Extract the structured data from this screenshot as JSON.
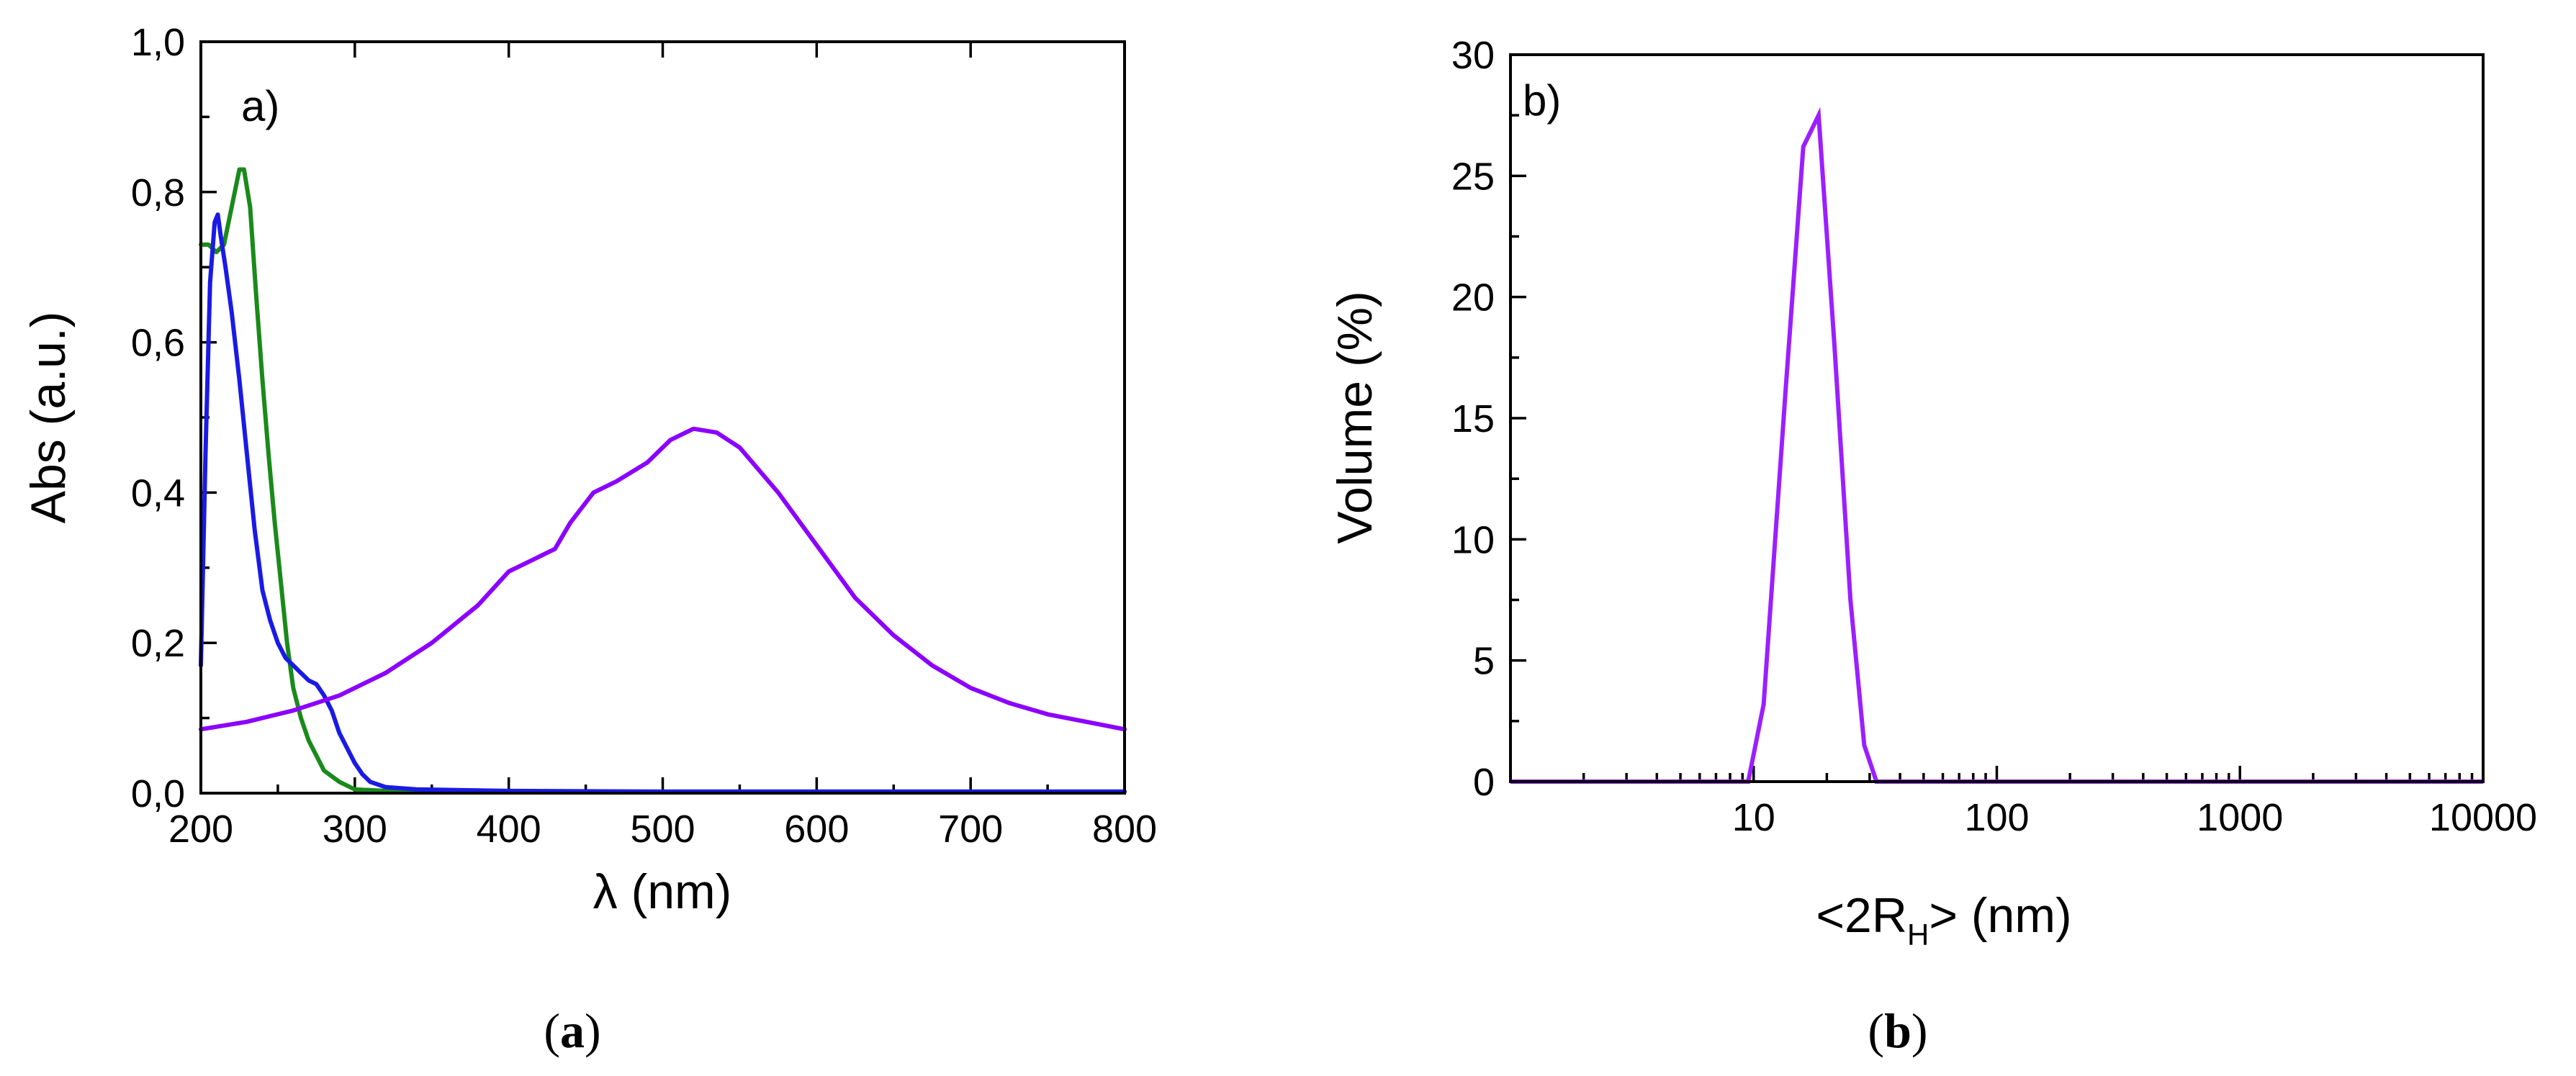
{
  "chart_data": [
    {
      "id": "a",
      "type": "line",
      "panel_label": "a)",
      "caption": "a",
      "xlabel": "λ (nm)",
      "ylabel": "Abs (a.u.)",
      "xlim": [
        200,
        800
      ],
      "ylim": [
        0,
        1.0
      ],
      "xticks": [
        200,
        300,
        400,
        500,
        600,
        700,
        800
      ],
      "xtick_labels": [
        "200",
        "300",
        "400",
        "500",
        "600",
        "700",
        "800"
      ],
      "yticks": [
        0,
        0.2,
        0.4,
        0.6,
        0.8,
        1.0
      ],
      "ytick_labels": [
        "0,0",
        "0,2",
        "0,4",
        "0,6",
        "0,8",
        "1,0"
      ],
      "grid": false,
      "series": [
        {
          "name": "green",
          "color": "#1a8a1a",
          "points": [
            [
              200,
              0.73
            ],
            [
              205,
              0.73
            ],
            [
              210,
              0.72
            ],
            [
              215,
              0.73
            ],
            [
              220,
              0.78
            ],
            [
              225,
              0.83
            ],
            [
              228,
              0.83
            ],
            [
              232,
              0.78
            ],
            [
              236,
              0.66
            ],
            [
              240,
              0.55
            ],
            [
              244,
              0.45
            ],
            [
              248,
              0.36
            ],
            [
              252,
              0.28
            ],
            [
              256,
              0.2
            ],
            [
              260,
              0.14
            ],
            [
              265,
              0.1
            ],
            [
              270,
              0.07
            ],
            [
              275,
              0.05
            ],
            [
              280,
              0.03
            ],
            [
              290,
              0.015
            ],
            [
              300,
              0.005
            ],
            [
              320,
              0.003
            ],
            [
              350,
              0.002
            ],
            [
              400,
              0.002
            ],
            [
              500,
              0.002
            ],
            [
              600,
              0.002
            ],
            [
              700,
              0.002
            ],
            [
              800,
              0.002
            ]
          ]
        },
        {
          "name": "blue",
          "color": "#1a1ae6",
          "points": [
            [
              200,
              0.17
            ],
            [
              203,
              0.45
            ],
            [
              206,
              0.68
            ],
            [
              209,
              0.76
            ],
            [
              211,
              0.77
            ],
            [
              213,
              0.74
            ],
            [
              216,
              0.7
            ],
            [
              220,
              0.64
            ],
            [
              225,
              0.55
            ],
            [
              230,
              0.45
            ],
            [
              235,
              0.35
            ],
            [
              240,
              0.27
            ],
            [
              245,
              0.23
            ],
            [
              250,
              0.2
            ],
            [
              255,
              0.18
            ],
            [
              260,
              0.17
            ],
            [
              265,
              0.16
            ],
            [
              270,
              0.15
            ],
            [
              275,
              0.145
            ],
            [
              280,
              0.13
            ],
            [
              285,
              0.11
            ],
            [
              290,
              0.08
            ],
            [
              295,
              0.06
            ],
            [
              300,
              0.04
            ],
            [
              305,
              0.025
            ],
            [
              310,
              0.015
            ],
            [
              320,
              0.008
            ],
            [
              340,
              0.005
            ],
            [
              400,
              0.003
            ],
            [
              500,
              0.002
            ],
            [
              600,
              0.002
            ],
            [
              700,
              0.002
            ],
            [
              800,
              0.002
            ]
          ]
        },
        {
          "name": "violet",
          "color": "#8b00ff",
          "points": [
            [
              200,
              0.085
            ],
            [
              230,
              0.095
            ],
            [
              260,
              0.11
            ],
            [
              290,
              0.13
            ],
            [
              320,
              0.16
            ],
            [
              350,
              0.2
            ],
            [
              380,
              0.25
            ],
            [
              400,
              0.295
            ],
            [
              415,
              0.31
            ],
            [
              430,
              0.325
            ],
            [
              440,
              0.36
            ],
            [
              455,
              0.4
            ],
            [
              470,
              0.415
            ],
            [
              490,
              0.44
            ],
            [
              505,
              0.47
            ],
            [
              520,
              0.485
            ],
            [
              535,
              0.48
            ],
            [
              550,
              0.46
            ],
            [
              575,
              0.4
            ],
            [
              600,
              0.33
            ],
            [
              625,
              0.26
            ],
            [
              650,
              0.21
            ],
            [
              675,
              0.17
            ],
            [
              700,
              0.14
            ],
            [
              725,
              0.12
            ],
            [
              750,
              0.105
            ],
            [
              775,
              0.095
            ],
            [
              800,
              0.085
            ]
          ]
        }
      ]
    },
    {
      "id": "b",
      "type": "line",
      "panel_label": "b)",
      "caption": "b",
      "xlabel_parts": [
        "<2R",
        "H",
        "> (nm)"
      ],
      "ylabel": "Volume (%)",
      "xscale": "log",
      "xlim": [
        1,
        10000
      ],
      "ylim": [
        0,
        30
      ],
      "xticks": [
        10,
        100,
        1000,
        10000
      ],
      "xtick_labels": [
        "10",
        "100",
        "1000",
        "10000"
      ],
      "yticks": [
        0,
        5,
        10,
        15,
        20,
        25,
        30
      ],
      "ytick_labels": [
        "0",
        "5",
        "10",
        "15",
        "20",
        "25",
        "30"
      ],
      "grid": false,
      "series": [
        {
          "name": "volume distribution",
          "color": "#9b1fff",
          "points": [
            [
              1,
              0
            ],
            [
              9.5,
              0
            ],
            [
              11,
              3.2
            ],
            [
              13.5,
              16
            ],
            [
              16,
              26.2
            ],
            [
              18.5,
              27.5
            ],
            [
              21.5,
              18
            ],
            [
              25,
              7.5
            ],
            [
              28.5,
              1.5
            ],
            [
              32,
              0
            ],
            [
              100,
              0
            ],
            [
              1000,
              0
            ],
            [
              10000,
              0
            ]
          ]
        }
      ]
    }
  ]
}
